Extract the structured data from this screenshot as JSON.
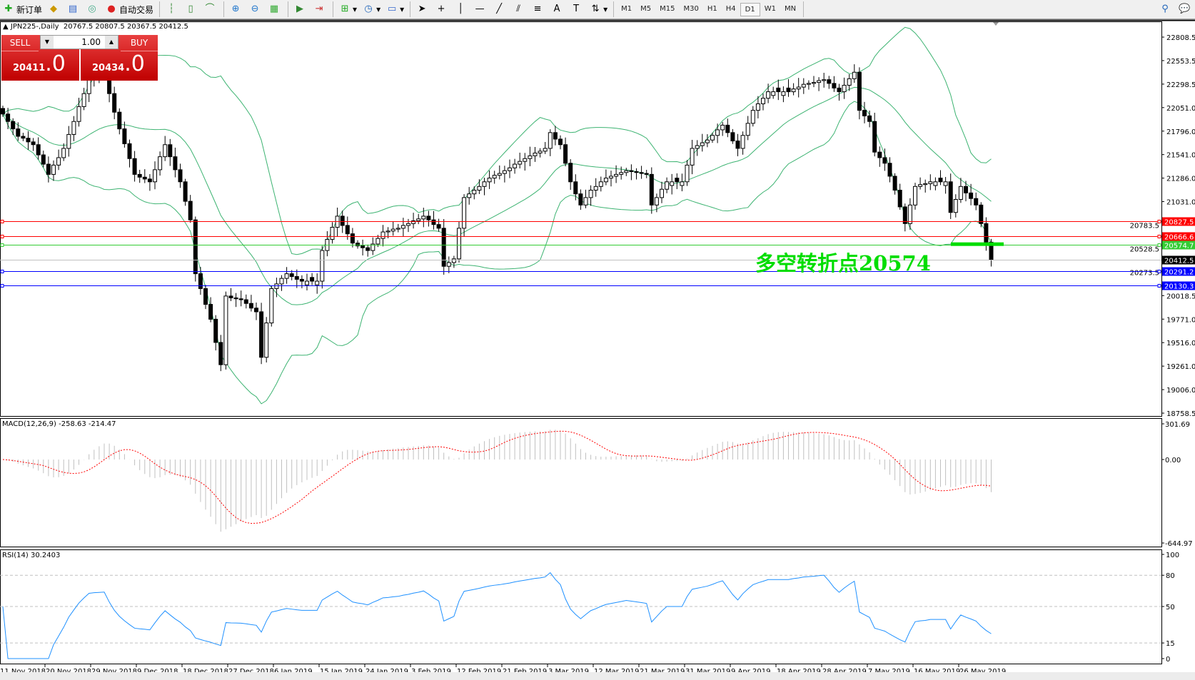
{
  "toolbar": {
    "new_order": "新订单",
    "auto_trading": "自动交易",
    "timeframes": [
      "M1",
      "M5",
      "M15",
      "M30",
      "H1",
      "H4",
      "D1",
      "W1",
      "MN"
    ],
    "active_timeframe": "D1"
  },
  "chart": {
    "symbol_title": "JPN225-,Daily",
    "ohlc": "20767.5 20807.5 20367.5 20412.5",
    "annotation": "多空转折点20574",
    "annotation_color": "#00dd00",
    "price_ticks": [
      "22808.5",
      "22553.5",
      "22298.5",
      "22051.0",
      "21796.0",
      "21541.0",
      "21286.0",
      "21031.0",
      "20783.5",
      "20528.5",
      "20273.5",
      "20018.5",
      "19771.0",
      "19516.0",
      "19261.0",
      "19006.0",
      "18758.5"
    ],
    "levels": [
      {
        "price": 20827.5,
        "label": "20827.5",
        "color": "#ff0000"
      },
      {
        "price": 20666.6,
        "label": "20666.6",
        "color": "#ff0000"
      },
      {
        "price": 20574.7,
        "label": "20574.7",
        "color": "#33cc33"
      },
      {
        "price": 20412.5,
        "label": "20412.5",
        "color": "#000000",
        "line_color": "#c0c0c0"
      },
      {
        "price": 20291.2,
        "label": "20291.2",
        "color": "#0000ff"
      },
      {
        "price": 20130.3,
        "label": "20130.3",
        "color": "#0000ff"
      }
    ],
    "price_range": [
      18758.5,
      22808.5
    ],
    "band_color": "#3cb371",
    "closes": [
      21980,
      21900,
      21820,
      21740,
      21720,
      21680,
      21650,
      21540,
      21440,
      21330,
      21430,
      21510,
      21610,
      21760,
      21900,
      22060,
      22200,
      22350,
      22370,
      22380,
      22390,
      22200,
      22000,
      21820,
      21660,
      21500,
      21330,
      21300,
      21280,
      21250,
      21380,
      21520,
      21650,
      21520,
      21380,
      21250,
      21040,
      20840,
      20260,
      20100,
      19930,
      19770,
      19520,
      19280,
      20020,
      20000,
      19990,
      19980,
      19940,
      19890,
      19850,
      19360,
      19730,
      20100,
      20150,
      20210,
      20260,
      20230,
      20200,
      20180,
      20180,
      20180,
      20180,
      20510,
      20630,
      20760,
      20880,
      20780,
      20690,
      20590,
      20560,
      20540,
      20510,
      20580,
      20640,
      20710,
      20720,
      20740,
      20750,
      20780,
      20800,
      20830,
      20850,
      20880,
      20840,
      20790,
      20750,
      20340,
      20380,
      20420,
      20750,
      21080,
      21120,
      21160,
      21200,
      21250,
      21290,
      21320,
      21340,
      21370,
      21400,
      21440,
      21470,
      21500,
      21530,
      21560,
      21580,
      21610,
      21780,
      21710,
      21650,
      21450,
      21250,
      21120,
      21000,
      21080,
      21160,
      21200,
      21250,
      21290,
      21310,
      21330,
      21350,
      21370,
      21360,
      21350,
      21340,
      21330,
      21000,
      21080,
      21170,
      21250,
      21250,
      21250,
      21250,
      21430,
      21610,
      21640,
      21670,
      21700,
      21750,
      21810,
      21860,
      21780,
      21690,
      21610,
      21750,
      21880,
      22020,
      22090,
      22150,
      22220,
      22220,
      22220,
      22220,
      22220,
      22250,
      22270,
      22300,
      22310,
      22320,
      22340,
      22350,
      22310,
      22260,
      22220,
      22290,
      22360,
      22430,
      22020,
      21960,
      21900,
      21570,
      21510,
      21450,
      21310,
      21160,
      20980,
      20800,
      21000,
      21200,
      21220,
      21230,
      21250,
      21250,
      21250,
      21250,
      20920,
      21060,
      21200,
      21130,
      21070,
      21000,
      20800,
      20600,
      20412.5
    ]
  },
  "trade": {
    "sell_label": "SELL",
    "buy_label": "BUY",
    "lot": "1.00",
    "sell_price_main": "20411",
    "sell_price_frac": ".0",
    "buy_price_main": "20434",
    "buy_price_frac": ".0"
  },
  "macd": {
    "label": "MACD(12,26,9) -258.63 -214.47",
    "ticks": [
      "301.69",
      "0.00",
      "-644.97"
    ],
    "range": [
      -644.97,
      301.69
    ],
    "hist_color": "#c0c0c0",
    "signal_color": "#ff0000"
  },
  "rsi": {
    "label": "RSI(14) 30.2403",
    "ticks": [
      "100",
      "80",
      "50",
      "15",
      "0"
    ],
    "levels": [
      80,
      50,
      15
    ],
    "line_color": "#1e90ff"
  },
  "dates": [
    "11 Nov 2018",
    "20 Nov 2018",
    "29 Nov 2018",
    "9 Dec 2018",
    "18 Dec 2018",
    "27 Dec 2018",
    "6 Jan 2019",
    "15 Jan 2019",
    "24 Jan 2019",
    "3 Feb 2019",
    "12 Feb 2019",
    "21 Feb 2019",
    "3 Mar 2019",
    "12 Mar 2019",
    "21 Mar 2019",
    "31 Mar 2019",
    "9 Apr 2019",
    "18 Apr 2019",
    "28 Apr 2019",
    "7 May 2019",
    "16 May 2019",
    "26 May 2019"
  ]
}
